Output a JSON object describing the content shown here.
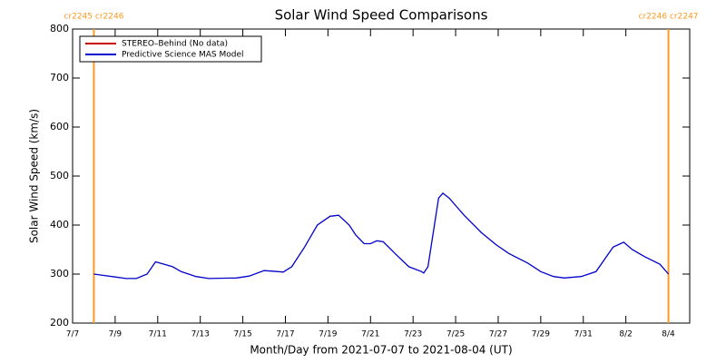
{
  "chart_data": {
    "type": "line",
    "title": "Solar Wind Speed Comparisons",
    "xlabel": "Month/Day from 2021-07-07 to 2021-08-04 (UT)",
    "ylabel": "Solar Wind Speed (km/s)",
    "xlim": [
      0,
      29
    ],
    "ylim": [
      200,
      800
    ],
    "xticks": [
      {
        "value": 0,
        "label": "7/7"
      },
      {
        "value": 2,
        "label": "7/9"
      },
      {
        "value": 4,
        "label": "7/11"
      },
      {
        "value": 6,
        "label": "7/13"
      },
      {
        "value": 8,
        "label": "7/15"
      },
      {
        "value": 10,
        "label": "7/17"
      },
      {
        "value": 12,
        "label": "7/19"
      },
      {
        "value": 14,
        "label": "7/21"
      },
      {
        "value": 16,
        "label": "7/23"
      },
      {
        "value": 18,
        "label": "7/25"
      },
      {
        "value": 20,
        "label": "7/27"
      },
      {
        "value": 22,
        "label": "7/29"
      },
      {
        "value": 24,
        "label": "7/31"
      },
      {
        "value": 26,
        "label": "8/2"
      },
      {
        "value": 28,
        "label": "8/4"
      }
    ],
    "yticks": [
      200,
      300,
      400,
      500,
      600,
      700,
      800
    ],
    "series": [
      {
        "name": "STEREO–Behind (No data)",
        "color": "#cc0000",
        "x": [],
        "values": []
      },
      {
        "name": "Predictive Science MAS Model",
        "color": "#0000cc",
        "x": [
          1.0,
          1.5,
          2.0,
          2.5,
          3.0,
          3.5,
          3.9,
          4.7,
          5.1,
          5.8,
          6.4,
          7.7,
          8.3,
          9.0,
          9.4,
          9.9,
          10.3,
          10.9,
          11.5,
          12.1,
          12.5,
          13.0,
          13.3,
          13.7,
          14.0,
          14.3,
          14.6,
          15.2,
          15.8,
          16.4,
          16.5,
          16.7,
          17.2,
          17.4,
          17.7,
          18.4,
          19.2,
          19.9,
          20.5,
          21.4,
          22.0,
          22.6,
          23.1,
          23.9,
          24.6,
          25.0,
          25.4,
          25.9,
          26.3,
          26.9,
          27.6,
          28.0
        ],
        "values": [
          300,
          297,
          294,
          291,
          291,
          300,
          325,
          315,
          305,
          295,
          291,
          292,
          296,
          307,
          306,
          304,
          315,
          355,
          400,
          418,
          420,
          400,
          380,
          362,
          362,
          368,
          366,
          340,
          315,
          305,
          302,
          315,
          455,
          465,
          455,
          420,
          385,
          360,
          342,
          322,
          305,
          295,
          292,
          295,
          305,
          330,
          355,
          365,
          350,
          335,
          320,
          300
        ]
      }
    ],
    "markers": {
      "color": "#ff9922",
      "lines": [
        {
          "x": 1,
          "label": "cr2245 cr2246"
        },
        {
          "x": 28,
          "label": "cr2246 cr2247"
        }
      ]
    },
    "legend": "upper left"
  }
}
